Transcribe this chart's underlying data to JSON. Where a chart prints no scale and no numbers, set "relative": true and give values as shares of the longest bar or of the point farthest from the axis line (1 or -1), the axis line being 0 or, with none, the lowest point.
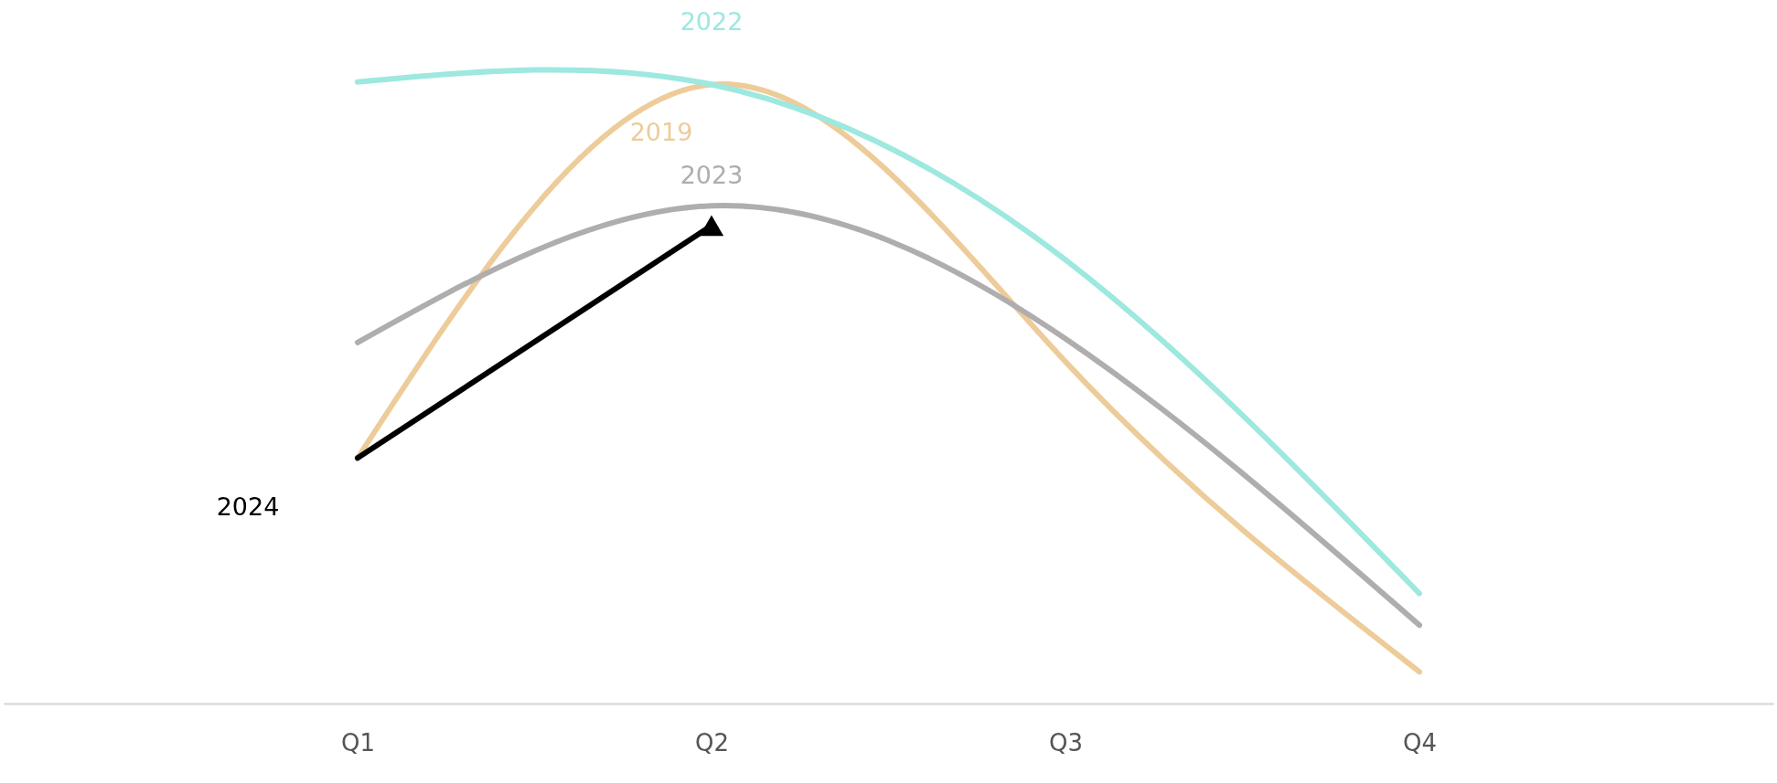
{
  "chart_data": {
    "type": "line",
    "relative": true,
    "categories": [
      "Q1",
      "Q2",
      "Q3",
      "Q4"
    ],
    "legend": false,
    "grid": false,
    "line_style": "solid",
    "series": [
      {
        "name": "2019",
        "color": "#edcc9a",
        "values": [
          0.395,
          0.996,
          0.55,
          0.051
        ]
      },
      {
        "name": "2022",
        "color": "#9de8df",
        "values": [
          1,
          0.996,
          0.714,
          0.177
        ]
      },
      {
        "name": "2023",
        "color": "#b0adae",
        "values": [
          0.581,
          0.801,
          0.587,
          0.126
        ]
      },
      {
        "name": "2024",
        "color": "#000000",
        "values": [
          0.395,
          0.769,
          null,
          null
        ]
      }
    ]
  }
}
